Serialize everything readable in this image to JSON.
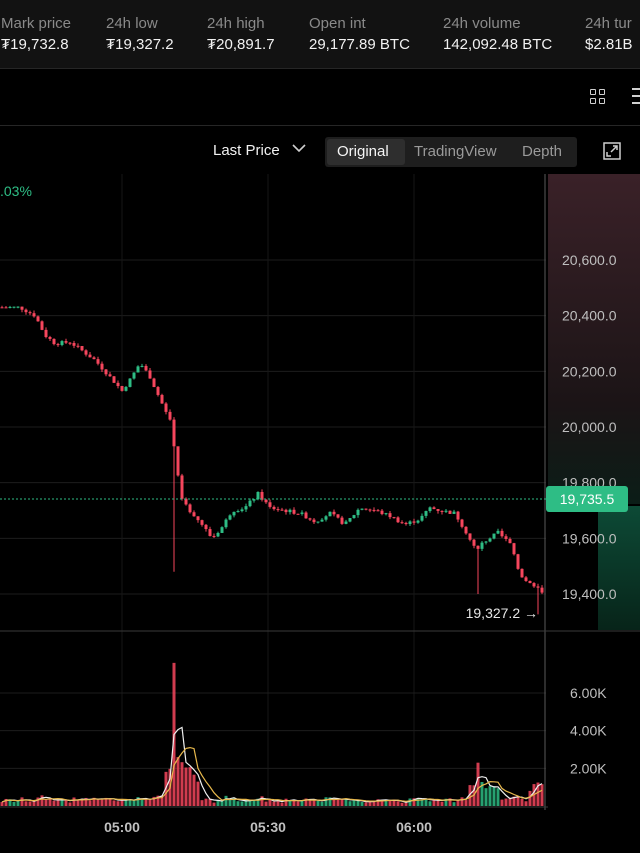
{
  "stats": [
    {
      "label": "Mark price",
      "value": "₮19,732.8",
      "x": 1
    },
    {
      "label": "24h low",
      "value": "₮19,327.2",
      "x": 106
    },
    {
      "label": "24h high",
      "value": "₮20,891.7",
      "x": 207
    },
    {
      "label": "Open int",
      "value": "29,177.89 BTC",
      "x": 309
    },
    {
      "label": "24h volume",
      "value": "142,092.48 BTC",
      "x": 443
    },
    {
      "label": "24h tur",
      "value": "$2.81B",
      "x": 585
    }
  ],
  "toolbar": {
    "price_type": "Last Price",
    "modes": [
      "Original",
      "TradingView",
      "Depth"
    ],
    "active_mode": "Original"
  },
  "chart_data": {
    "type": "candlestick",
    "change_label": ".03%",
    "price_axis_ticks": [
      "20,600.0",
      "20,400.0",
      "20,200.0",
      "20,000.0",
      "19,800.0",
      "19,600.0",
      "19,400.0"
    ],
    "price_axis_values": [
      20600,
      20400,
      20200,
      20000,
      19800,
      19600,
      19400
    ],
    "current_price": "19,735.5",
    "low_marker": "19,327.2 →",
    "volume_axis_ticks": [
      "6.00K",
      "4.00K",
      "2.00K"
    ],
    "volume_axis_values": [
      6000,
      4000,
      2000
    ],
    "time_ticks": [
      "05:00",
      "05:30",
      "06:00"
    ],
    "colors": {
      "up": "#2ebd85",
      "down": "#f6465d",
      "price_line": "#2ebd85",
      "ma_white": "#f0f0f0",
      "ma_yellow": "#e7b84c"
    }
  }
}
